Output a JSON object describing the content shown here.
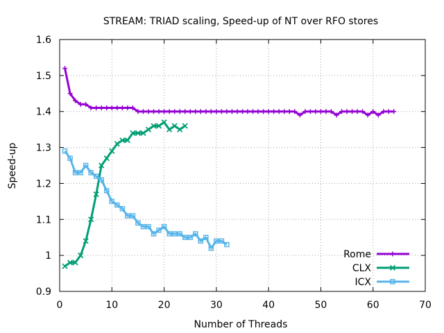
{
  "chart_data": {
    "type": "line",
    "title": "STREAM: TRIAD scaling, Speed-up of NT over RFO stores",
    "xlabel": "Number of Threads",
    "ylabel": "Speed-up",
    "xlim": [
      0,
      70
    ],
    "ylim": [
      0.9,
      1.6
    ],
    "xticks": [
      0,
      10,
      20,
      30,
      40,
      50,
      60,
      70
    ],
    "yticks": [
      0.9,
      1,
      1.1,
      1.2,
      1.3,
      1.4,
      1.5,
      1.6
    ],
    "xtick_labels": [
      "0",
      "10",
      "20",
      "30",
      "40",
      "50",
      "60",
      "70"
    ],
    "ytick_labels": [
      "0.9",
      "1",
      "1.1",
      "1.2",
      "1.3",
      "1.4",
      "1.5",
      "1.6"
    ],
    "grid": true,
    "legend_position": "bottom-right",
    "series": [
      {
        "name": "Rome",
        "color": "#9400d3",
        "marker": "plus",
        "x": [
          1,
          2,
          3,
          4,
          5,
          6,
          7,
          8,
          9,
          10,
          11,
          12,
          13,
          14,
          15,
          16,
          17,
          18,
          19,
          20,
          21,
          22,
          23,
          24,
          25,
          26,
          27,
          28,
          29,
          30,
          31,
          32,
          33,
          34,
          35,
          36,
          37,
          38,
          39,
          40,
          41,
          42,
          43,
          44,
          45,
          46,
          47,
          48,
          49,
          50,
          51,
          52,
          53,
          54,
          55,
          56,
          57,
          58,
          59,
          60,
          61,
          62,
          63,
          64
        ],
        "y": [
          1.52,
          1.45,
          1.43,
          1.42,
          1.42,
          1.41,
          1.41,
          1.41,
          1.41,
          1.41,
          1.41,
          1.41,
          1.41,
          1.41,
          1.4,
          1.4,
          1.4,
          1.4,
          1.4,
          1.4,
          1.4,
          1.4,
          1.4,
          1.4,
          1.4,
          1.4,
          1.4,
          1.4,
          1.4,
          1.4,
          1.4,
          1.4,
          1.4,
          1.4,
          1.4,
          1.4,
          1.4,
          1.4,
          1.4,
          1.4,
          1.4,
          1.4,
          1.4,
          1.4,
          1.4,
          1.39,
          1.4,
          1.4,
          1.4,
          1.4,
          1.4,
          1.4,
          1.39,
          1.4,
          1.4,
          1.4,
          1.4,
          1.4,
          1.39,
          1.4,
          1.39,
          1.4,
          1.4,
          1.4
        ]
      },
      {
        "name": "CLX",
        "color": "#009e73",
        "marker": "cross",
        "x": [
          1,
          2,
          3,
          4,
          5,
          6,
          7,
          8,
          9,
          10,
          11,
          12,
          13,
          14,
          15,
          16,
          17,
          18,
          19,
          20,
          21,
          22,
          23,
          24
        ],
        "y": [
          0.97,
          0.98,
          0.98,
          1.0,
          1.04,
          1.1,
          1.17,
          1.25,
          1.27,
          1.29,
          1.31,
          1.32,
          1.32,
          1.34,
          1.34,
          1.34,
          1.35,
          1.36,
          1.36,
          1.37,
          1.35,
          1.36,
          1.35,
          1.36
        ]
      },
      {
        "name": "ICX",
        "color": "#56b4e9",
        "marker": "box",
        "x": [
          1,
          2,
          3,
          4,
          5,
          6,
          7,
          8,
          9,
          10,
          11,
          12,
          13,
          14,
          15,
          16,
          17,
          18,
          19,
          20,
          21,
          22,
          23,
          24,
          25,
          26,
          27,
          28,
          29,
          30,
          31,
          32
        ],
        "y": [
          1.29,
          1.27,
          1.23,
          1.23,
          1.25,
          1.23,
          1.22,
          1.21,
          1.18,
          1.15,
          1.14,
          1.13,
          1.11,
          1.11,
          1.09,
          1.08,
          1.08,
          1.06,
          1.07,
          1.08,
          1.06,
          1.06,
          1.06,
          1.05,
          1.05,
          1.06,
          1.04,
          1.05,
          1.02,
          1.04,
          1.04,
          1.03
        ]
      }
    ]
  }
}
